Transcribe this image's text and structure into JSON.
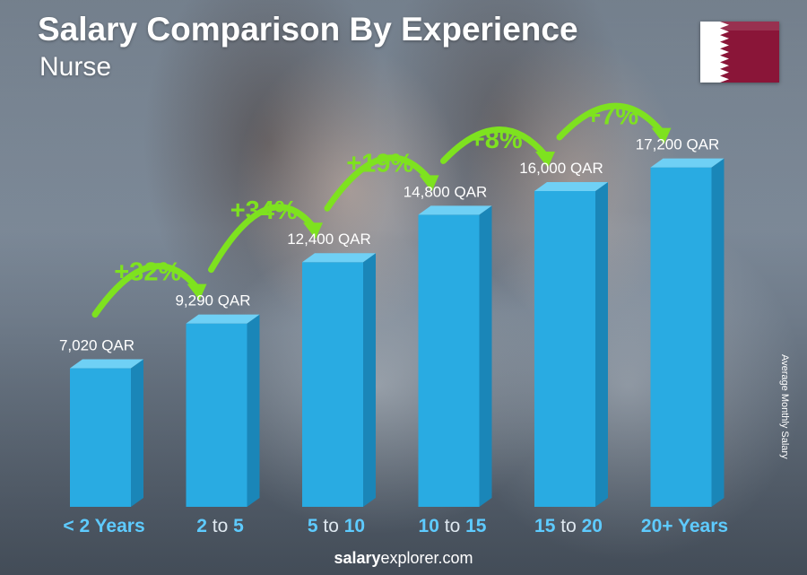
{
  "title": "Salary Comparison By Experience",
  "subtitle": "Nurse",
  "y_axis_label": "Average Monthly Salary",
  "footer": {
    "brand_bold": "salary",
    "brand_rest": "explorer.com"
  },
  "flag_icon": "qatar-flag-icon",
  "colors": {
    "bar_front": "#29abe2",
    "bar_side": "#1a86b8",
    "bar_top": "#6fd0f5",
    "increase": "#7ee21f",
    "tick_highlight": "#5ecbff",
    "flag_maroon": "#8a1538"
  },
  "chart_data": {
    "type": "bar",
    "unit": "QAR",
    "categories": [
      "< 2 Years",
      "2 to 5",
      "5 to 10",
      "10 to 15",
      "15 to 20",
      "20+ Years"
    ],
    "tick_parts": [
      [
        {
          "t": "< 2 Years",
          "h": true
        }
      ],
      [
        {
          "t": "2",
          "h": true
        },
        {
          "t": " to ",
          "h": false
        },
        {
          "t": "5",
          "h": true
        }
      ],
      [
        {
          "t": "5",
          "h": true
        },
        {
          "t": " to ",
          "h": false
        },
        {
          "t": "10",
          "h": true
        }
      ],
      [
        {
          "t": "10",
          "h": true
        },
        {
          "t": " to ",
          "h": false
        },
        {
          "t": "15",
          "h": true
        }
      ],
      [
        {
          "t": "15",
          "h": true
        },
        {
          "t": " to ",
          "h": false
        },
        {
          "t": "20",
          "h": true
        }
      ],
      [
        {
          "t": "20+ Years",
          "h": true
        }
      ]
    ],
    "values": [
      7020,
      9290,
      12400,
      14800,
      16000,
      17200
    ],
    "value_labels": [
      "7,020 QAR",
      "9,290 QAR",
      "12,400 QAR",
      "14,800 QAR",
      "16,000 QAR",
      "17,200 QAR"
    ],
    "increases": [
      "+32%",
      "+34%",
      "+19%",
      "+8%",
      "+7%"
    ],
    "ylabel": "Average Monthly Salary",
    "ylim": [
      0,
      20000
    ]
  }
}
